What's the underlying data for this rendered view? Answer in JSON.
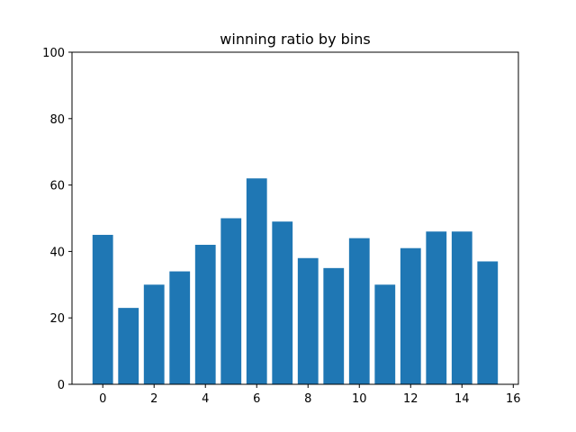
{
  "chart_data": {
    "type": "bar",
    "title": "winning ratio by bins",
    "xlabel": "",
    "ylabel": "",
    "x": [
      0,
      1,
      2,
      3,
      4,
      5,
      6,
      7,
      8,
      9,
      10,
      11,
      12,
      13,
      14,
      15
    ],
    "values": [
      45,
      23,
      30,
      34,
      42,
      50,
      62,
      49,
      38,
      35,
      44,
      30,
      41,
      46,
      46,
      37
    ],
    "xlim": [
      -1.2,
      16.2
    ],
    "ylim": [
      0,
      100
    ],
    "xticks": [
      0,
      2,
      4,
      6,
      8,
      10,
      12,
      14,
      16
    ],
    "yticks": [
      0,
      20,
      40,
      60,
      80,
      100
    ],
    "bar_color": "#1f77b4",
    "grid": false,
    "legend": "none"
  }
}
